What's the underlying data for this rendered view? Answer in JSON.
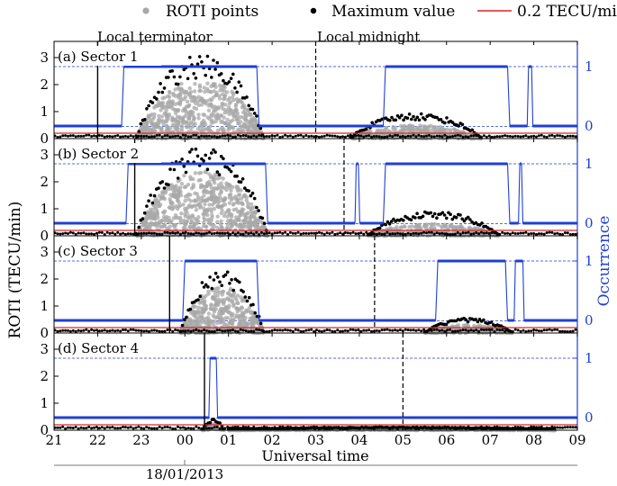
{
  "legend": {
    "points_label": "ROTI points",
    "max_label": "Maximum value",
    "threshold_label": "0.2 TECU/min"
  },
  "annotations": {
    "terminator": "Local terminator",
    "midnight": "Local midnight"
  },
  "date_label": "18/01/2013",
  "colors": {
    "points": "#a8a8a8",
    "max": "#000000",
    "threshold": "#d62728",
    "occurrence": "#1f3fd6",
    "frame": "#000000"
  },
  "chart_data": {
    "type": "scatter",
    "xlabel": "Universal time",
    "ylabel": "ROTI (TECU/min)",
    "y2label": "Occurrence",
    "x_ticks": [
      "21",
      "22",
      "23",
      "00",
      "01",
      "02",
      "03",
      "04",
      "05",
      "06",
      "07",
      "08",
      "09"
    ],
    "x_range_hours": [
      21,
      33
    ],
    "ylim": [
      0,
      3.6
    ],
    "y_ticks": [
      "0",
      "1",
      "2",
      "3"
    ],
    "y2_ticks": [
      "0",
      "1"
    ],
    "threshold": 0.2,
    "panels": [
      {
        "label": "(a) Sector 1",
        "terminator_ut": 22.0,
        "midnight_ut": 27.0,
        "activity": [
          {
            "start": 22.9,
            "end": 25.8,
            "peak": 3.1,
            "spread": 2.2
          },
          {
            "start": 27.8,
            "end": 30.8,
            "peak": 0.95,
            "spread": 0.5
          }
        ],
        "occurrence": [
          [
            21.0,
            0
          ],
          [
            22.55,
            0
          ],
          [
            22.6,
            1
          ],
          [
            25.65,
            1
          ],
          [
            25.7,
            0
          ],
          [
            28.55,
            0
          ],
          [
            28.6,
            1
          ],
          [
            31.4,
            1
          ],
          [
            31.45,
            0
          ],
          [
            31.85,
            0
          ],
          [
            31.88,
            1
          ],
          [
            31.95,
            1
          ],
          [
            31.98,
            0
          ],
          [
            33.0,
            0
          ]
        ]
      },
      {
        "label": "(b) Sector 2",
        "terminator_ut": 22.85,
        "midnight_ut": 27.65,
        "activity": [
          {
            "start": 22.9,
            "end": 25.9,
            "peak": 3.3,
            "spread": 2.4
          },
          {
            "start": 28.2,
            "end": 31.2,
            "peak": 0.9,
            "spread": 0.45
          }
        ],
        "occurrence": [
          [
            21.0,
            0
          ],
          [
            22.65,
            0
          ],
          [
            22.7,
            1
          ],
          [
            25.85,
            1
          ],
          [
            25.9,
            0
          ],
          [
            27.9,
            0
          ],
          [
            27.93,
            1
          ],
          [
            27.98,
            1
          ],
          [
            28.01,
            0
          ],
          [
            28.55,
            0
          ],
          [
            28.6,
            1
          ],
          [
            31.4,
            1
          ],
          [
            31.45,
            0
          ],
          [
            31.65,
            0
          ],
          [
            31.68,
            1
          ],
          [
            31.72,
            1
          ],
          [
            31.75,
            0
          ],
          [
            33.0,
            0
          ]
        ]
      },
      {
        "label": "(c) Sector 3",
        "terminator_ut": 23.65,
        "midnight_ut": 28.35,
        "activity": [
          {
            "start": 23.9,
            "end": 25.8,
            "peak": 2.3,
            "spread": 1.7
          },
          {
            "start": 29.5,
            "end": 31.5,
            "peak": 0.55,
            "spread": 0.3
          }
        ],
        "occurrence": [
          [
            21.0,
            0
          ],
          [
            23.95,
            0
          ],
          [
            24.0,
            1
          ],
          [
            25.65,
            1
          ],
          [
            25.7,
            0
          ],
          [
            29.75,
            0
          ],
          [
            29.8,
            1
          ],
          [
            31.35,
            1
          ],
          [
            31.4,
            0
          ],
          [
            31.55,
            0
          ],
          [
            31.58,
            1
          ],
          [
            31.75,
            1
          ],
          [
            31.78,
            0
          ],
          [
            33.0,
            0
          ]
        ]
      },
      {
        "label": "(d) Sector 4",
        "terminator_ut": 24.45,
        "midnight_ut": 29.0,
        "activity": [
          {
            "start": 24.4,
            "end": 24.9,
            "peak": 0.4,
            "spread": 0.25
          },
          {
            "start": 25.0,
            "end": 32.5,
            "peak": 0.12,
            "spread": 0.08
          }
        ],
        "occurrence": [
          [
            21.0,
            0
          ],
          [
            24.55,
            0
          ],
          [
            24.58,
            1
          ],
          [
            24.72,
            1
          ],
          [
            24.75,
            0
          ],
          [
            33.0,
            0
          ]
        ]
      }
    ]
  }
}
